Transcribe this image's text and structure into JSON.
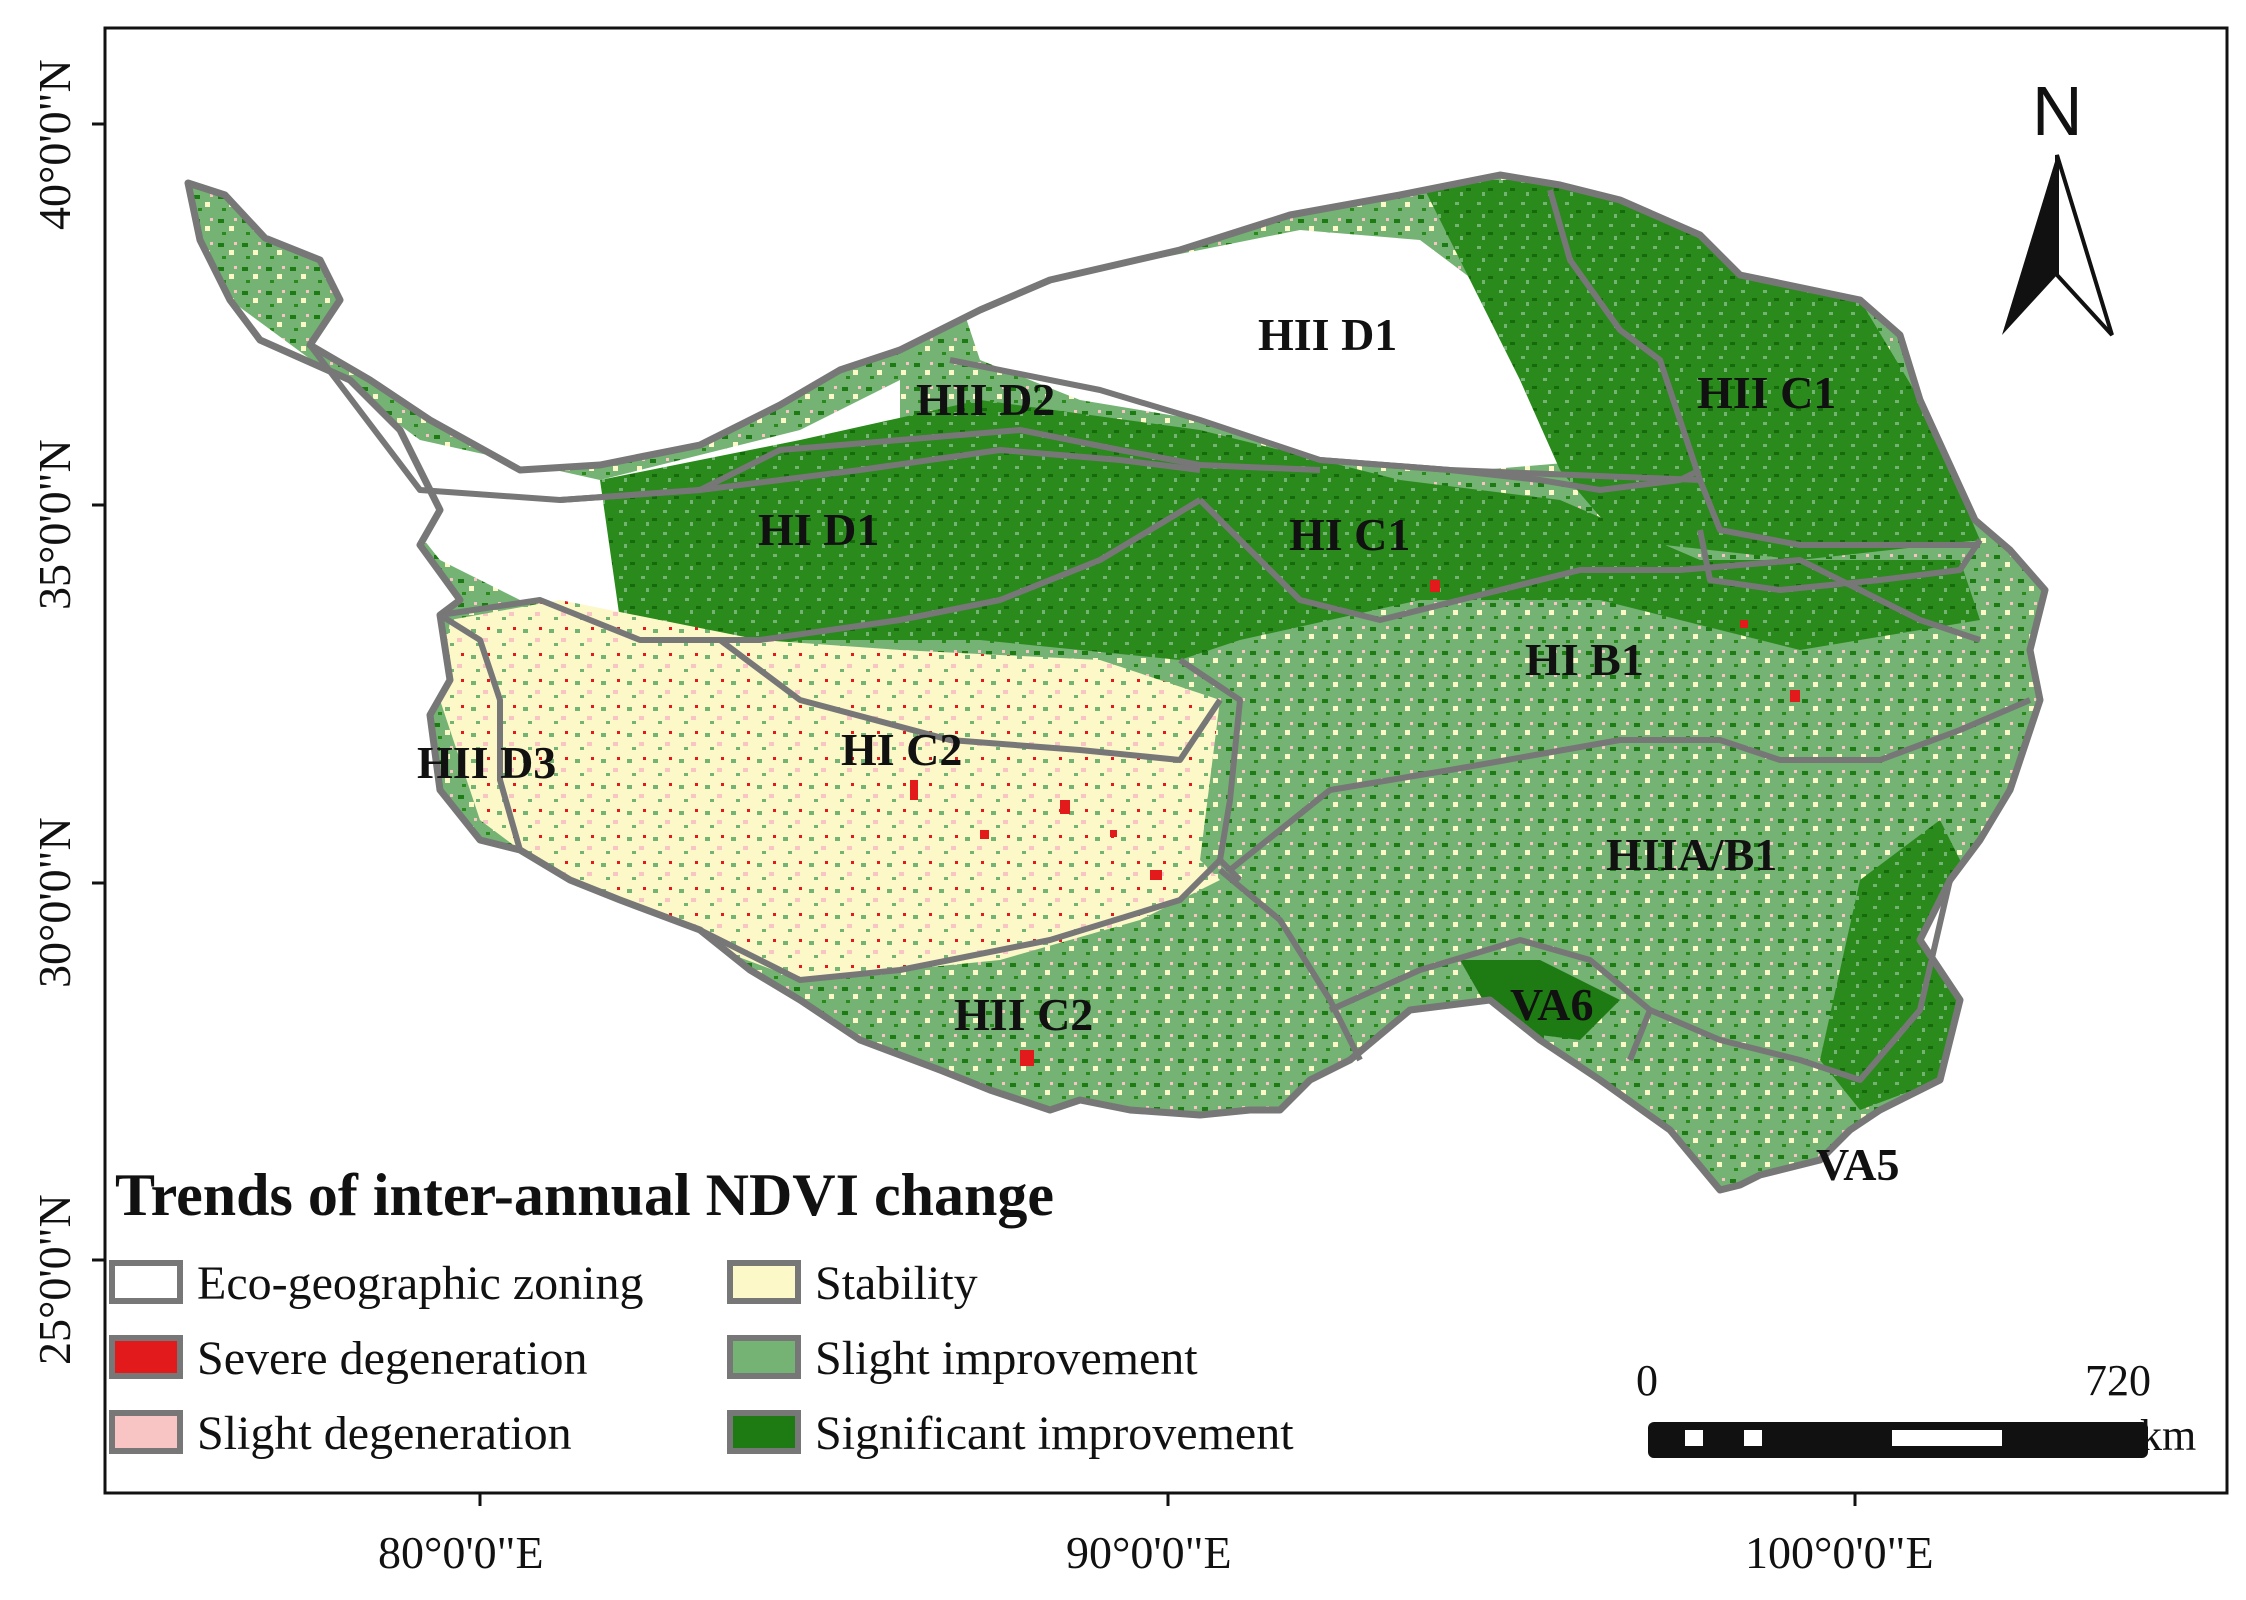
{
  "axes": {
    "lat_ticks": [
      {
        "label": "40°0'0\"N"
      },
      {
        "label": "35°0'0\"N"
      },
      {
        "label": "30°0'0\"N"
      },
      {
        "label": "25°0'0\"N"
      }
    ],
    "lon_ticks": [
      {
        "label": "80°0'0\"E"
      },
      {
        "label": "90°0'0\"E"
      },
      {
        "label": "100°0'0\"E"
      }
    ]
  },
  "zones": [
    {
      "id": "hii-d1",
      "label": "HII D1"
    },
    {
      "id": "hii-d2",
      "label": "HII D2"
    },
    {
      "id": "hii-c1",
      "label": "HII C1"
    },
    {
      "id": "hi-d1",
      "label": "HI D1"
    },
    {
      "id": "hi-c1",
      "label": "HI C1"
    },
    {
      "id": "hi-b1",
      "label": "HI B1"
    },
    {
      "id": "hii-d3",
      "label": "HII D3"
    },
    {
      "id": "hi-c2",
      "label": "HI C2"
    },
    {
      "id": "hiia-b1",
      "label": "HIIA/B1"
    },
    {
      "id": "va6",
      "label": "VA6"
    },
    {
      "id": "hii-c2",
      "label": "HII C2"
    },
    {
      "id": "va5",
      "label": "VA5"
    }
  ],
  "north_arrow": {
    "label": "N"
  },
  "legend": {
    "title": "Trends of inter-annual NDVI change",
    "items": [
      {
        "label": "Eco-geographic zoning",
        "color": "#ffffff",
        "border": "#777777"
      },
      {
        "label": "Severe degeneration",
        "color": "#e31a1c",
        "border": "#777777"
      },
      {
        "label": "Slight degeneration",
        "color": "#f8c4c4",
        "border": "#777777"
      },
      {
        "label": "Stability",
        "color": "#fdf8c8",
        "border": "#777777"
      },
      {
        "label": "Slight improvement",
        "color": "#74b374",
        "border": "#777777"
      },
      {
        "label": "Significant improvement",
        "color": "#1e7a12",
        "border": "#777777"
      }
    ]
  },
  "scale_bar": {
    "start": "0",
    "end": "720",
    "unit": "km"
  },
  "colors": {
    "boundary": "#777777",
    "significant": "#1e7a12",
    "slight_improve": "#74b374",
    "stability": "#fdf8c8",
    "slight_degen": "#f8c4c4",
    "severe": "#e31a1c"
  }
}
